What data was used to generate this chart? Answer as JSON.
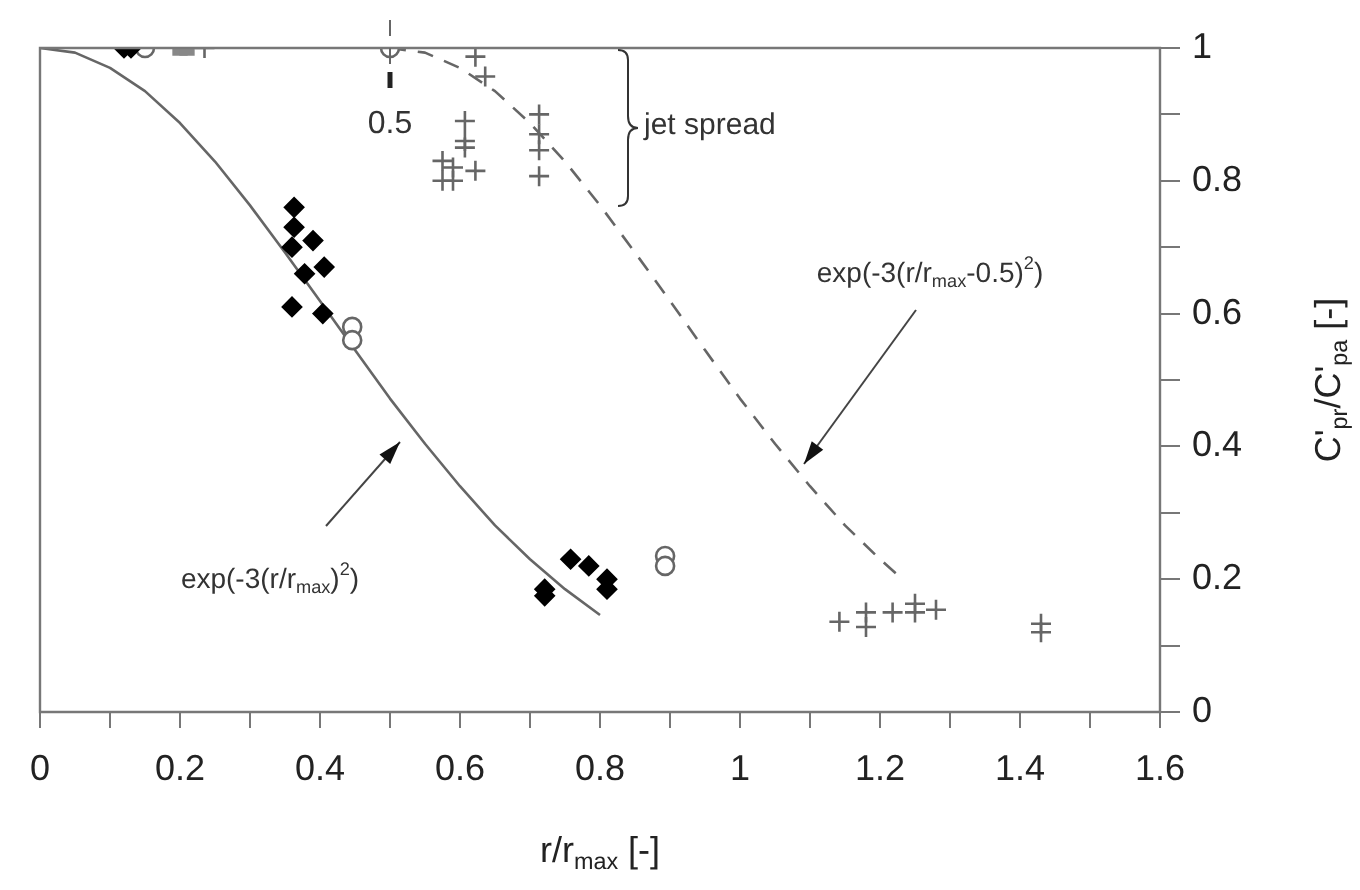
{
  "chart_data": {
    "type": "scatter",
    "xlabel": "r/r$_{max}$ [-]",
    "ylabel": "C'$_{pr}$/C'$_{pa}$ [-]",
    "xlim": [
      0,
      1.6
    ],
    "ylim": [
      0,
      1
    ],
    "xticks": [
      0,
      {
        "value": 0.1,
        "label": null
      },
      0.2,
      {
        "value": 0.3,
        "label": null
      },
      0.4,
      {
        "value": 0.5,
        "label": null
      },
      0.6,
      {
        "value": 0.7,
        "label": null
      },
      0.8,
      {
        "value": 0.9,
        "label": null
      },
      1,
      {
        "value": 1.1,
        "label": null
      },
      1.2,
      {
        "value": 1.3,
        "label": null
      },
      1.4,
      {
        "value": 1.5,
        "label": null
      },
      1.6
    ],
    "yticks": [
      0,
      {
        "value": 0.1,
        "label": null
      },
      0.2,
      {
        "value": 0.3,
        "label": null
      },
      0.4,
      {
        "value": 0.5,
        "label": null
      },
      0.6,
      {
        "value": 0.7,
        "label": null
      },
      0.8,
      {
        "value": 0.9,
        "label": null
      },
      1
    ],
    "grid": false,
    "legend": false,
    "series": [
      {
        "marker": "diamond",
        "color": "#000000",
        "x": [
          0.12,
          0.13,
          0.363,
          0.363,
          0.36,
          0.39,
          0.378,
          0.406,
          0.36,
          0.404,
          0.721,
          0.721,
          0.758,
          0.784,
          0.81,
          0.81
        ],
        "values": [
          1,
          1,
          0.76,
          0.73,
          0.7,
          0.71,
          0.66,
          0.67,
          0.61,
          0.6,
          0.175,
          0.185,
          0.23,
          0.22,
          0.2,
          0.185
        ]
      },
      {
        "marker": "circle",
        "color": "#666666",
        "x": [
          0.15,
          0.5,
          0.446,
          0.446,
          0.893,
          0.893
        ],
        "values": [
          1,
          1,
          0.58,
          0.56,
          0.235,
          0.22
        ]
      },
      {
        "marker": "square",
        "color": "#888888",
        "x": [
          0.2,
          0.21
        ],
        "values": [
          1,
          1
        ]
      },
      {
        "marker": "cross",
        "color": "#666666",
        "x": [
          0.235,
          0.622,
          0.636,
          0.607,
          0.607,
          0.607,
          0.575,
          0.59,
          0.622,
          0.575,
          0.59,
          0.713,
          0.713,
          0.713,
          0.713,
          1.142,
          1.18,
          1.18,
          1.218,
          1.25,
          1.25,
          1.28,
          1.43,
          1.43
        ],
        "values": [
          1,
          0.987,
          0.957,
          0.89,
          0.86,
          0.85,
          0.83,
          0.82,
          0.815,
          0.8,
          0.8,
          0.9,
          0.87,
          0.846,
          0.807,
          0.136,
          0.15,
          0.128,
          0.15,
          0.163,
          0.15,
          0.154,
          0.133,
          0.12
        ]
      },
      {
        "type": "line",
        "marker": "none",
        "line_style": "solid",
        "color": "#666666",
        "x": [
          0,
          0.05,
          0.1,
          0.15,
          0.2,
          0.25,
          0.3,
          0.35,
          0.4,
          0.45,
          0.5,
          0.55,
          0.6,
          0.65,
          0.7,
          0.75,
          0.8
        ],
        "values": [
          1,
          0.993,
          0.97,
          0.935,
          0.887,
          0.829,
          0.763,
          0.692,
          0.619,
          0.545,
          0.472,
          0.404,
          0.34,
          0.281,
          0.23,
          0.185,
          0.146
        ]
      },
      {
        "type": "line",
        "marker": "none",
        "line_style": "dashed",
        "color": "#666666",
        "x": [
          0.5,
          0.55,
          0.6,
          0.65,
          0.7,
          0.75,
          0.8,
          0.85,
          0.9,
          0.95,
          1,
          1.05,
          1.1,
          1.15,
          1.2,
          1.23
        ],
        "values": [
          1,
          0.993,
          0.97,
          0.935,
          0.887,
          0.829,
          0.763,
          0.692,
          0.619,
          0.545,
          0.472,
          0.404,
          0.34,
          0.281,
          0.23,
          0.202
        ]
      }
    ],
    "ref_lines": [
      {
        "axis": "x",
        "value": 0.5,
        "label": "0.5",
        "line_style": "dashed",
        "color": "#666666"
      }
    ],
    "annotations": [
      "exp(-3(r/r$_{max}$)$^{2}$)",
      "exp(-3(r/r$_{max}$-0.5)$^{2}$)",
      "jet spread"
    ]
  }
}
